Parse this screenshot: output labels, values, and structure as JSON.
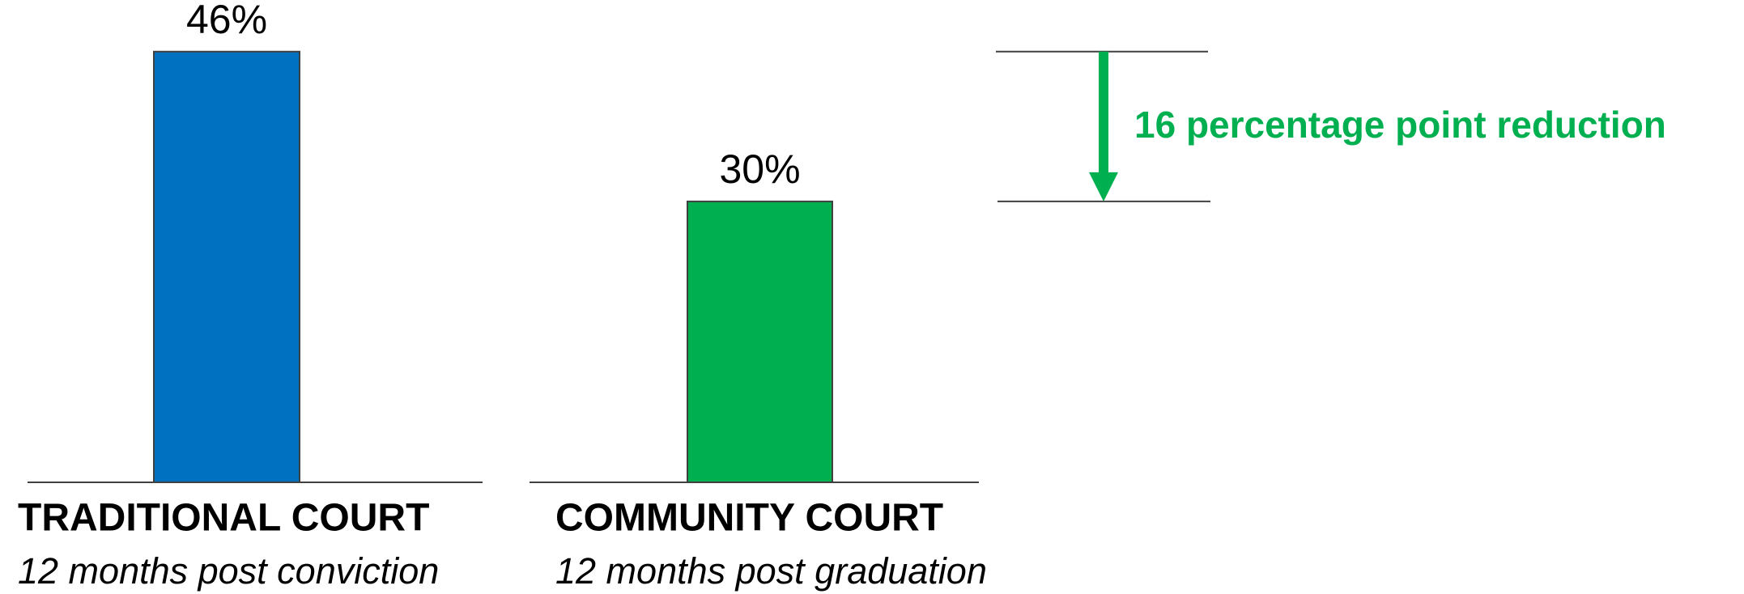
{
  "chart_data": {
    "type": "bar",
    "categories": [
      "TRADITIONAL COURT",
      "COMMUNITY COURT"
    ],
    "subtitles": [
      "12 months post conviction",
      "12 months post graduation"
    ],
    "values": [
      46,
      30
    ],
    "value_labels": [
      "46%",
      "30%"
    ],
    "colors": [
      "#0070c0",
      "#00b050"
    ],
    "annotation": "16 percentage point reduction",
    "annotation_color": "#00b050"
  }
}
